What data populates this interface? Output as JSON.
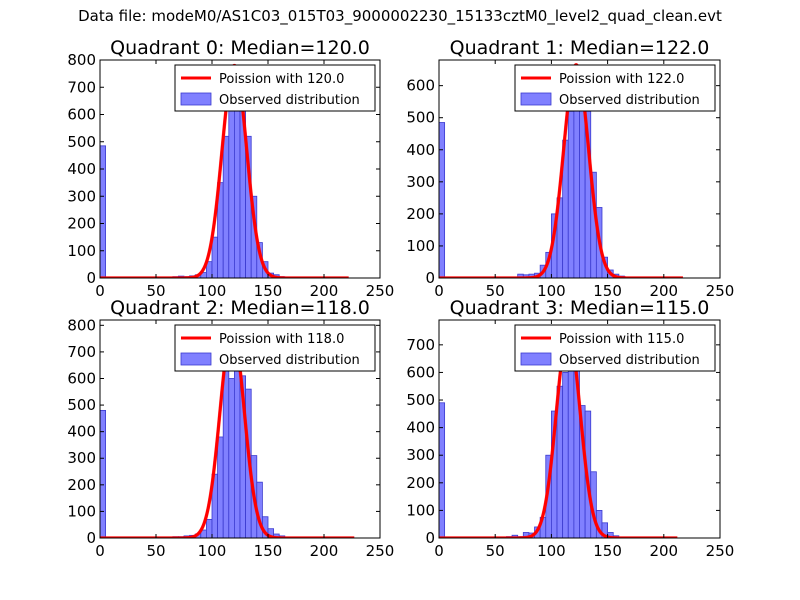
{
  "figure": {
    "suptitle": "Data file: modeM0/AS1C03_015T03_9000002230_15133cztM0_level2_quad_clean.evt"
  },
  "chart_data": [
    {
      "type": "histogram+line",
      "title": "Quadrant 0: Median=120.0",
      "median": 120.0,
      "xlim": [
        0,
        250
      ],
      "ylim": [
        0,
        800
      ],
      "xticks": [
        0,
        50,
        100,
        150,
        200,
        250
      ],
      "yticks": [
        0,
        100,
        200,
        300,
        400,
        500,
        600,
        700,
        800
      ],
      "legend_location": "upper right",
      "legend": [
        {
          "label": "Poission with 120.0",
          "kind": "line",
          "color": "#ff0000"
        },
        {
          "label": "Observed distribution",
          "kind": "patch",
          "color": "#8080ff"
        }
      ],
      "bin_width": 5,
      "bar_color": "#8080ff",
      "bins": [
        [
          0,
          485
        ],
        [
          60,
          3
        ],
        [
          65,
          5
        ],
        [
          70,
          7
        ],
        [
          75,
          5
        ],
        [
          80,
          8
        ],
        [
          85,
          12
        ],
        [
          90,
          20
        ],
        [
          95,
          60
        ],
        [
          100,
          150
        ],
        [
          105,
          350
        ],
        [
          110,
          520
        ],
        [
          115,
          630
        ],
        [
          120,
          750
        ],
        [
          125,
          640
        ],
        [
          130,
          520
        ],
        [
          135,
          300
        ],
        [
          140,
          130
        ],
        [
          145,
          60
        ],
        [
          150,
          18
        ],
        [
          155,
          12
        ],
        [
          160,
          5
        ],
        [
          165,
          3
        ],
        [
          175,
          2
        ]
      ],
      "poisson_curve": {
        "label": "Poission with 120.0",
        "mean": 120.0,
        "peak": 780,
        "x_range": [
          0,
          222
        ],
        "color": "#ff0000"
      }
    },
    {
      "type": "histogram+line",
      "title": "Quadrant 1: Median=122.0",
      "median": 122.0,
      "xlim": [
        0,
        250
      ],
      "ylim": [
        0,
        680
      ],
      "xticks": [
        0,
        50,
        100,
        150,
        200,
        250
      ],
      "yticks": [
        0,
        100,
        200,
        300,
        400,
        500,
        600
      ],
      "legend_location": "upper right",
      "legend": [
        {
          "label": "Poission with 122.0",
          "kind": "line",
          "color": "#ff0000"
        },
        {
          "label": "Observed distribution",
          "kind": "patch",
          "color": "#8080ff"
        }
      ],
      "bin_width": 5,
      "bar_color": "#8080ff",
      "bins": [
        [
          0,
          485
        ],
        [
          70,
          12
        ],
        [
          75,
          10
        ],
        [
          80,
          12
        ],
        [
          85,
          15
        ],
        [
          90,
          40
        ],
        [
          95,
          80
        ],
        [
          100,
          200
        ],
        [
          105,
          250
        ],
        [
          110,
          430
        ],
        [
          115,
          520
        ],
        [
          120,
          600
        ],
        [
          125,
          570
        ],
        [
          130,
          520
        ],
        [
          135,
          330
        ],
        [
          140,
          220
        ],
        [
          145,
          65
        ],
        [
          150,
          25
        ],
        [
          155,
          12
        ],
        [
          160,
          6
        ],
        [
          165,
          3
        ]
      ],
      "poisson_curve": {
        "label": "Poission with 122.0",
        "mean": 122.0,
        "peak": 665,
        "x_range": [
          0,
          217
        ],
        "color": "#ff0000"
      }
    },
    {
      "type": "histogram+line",
      "title": "Quadrant 2: Median=118.0",
      "median": 118.0,
      "xlim": [
        0,
        250
      ],
      "ylim": [
        0,
        820
      ],
      "xticks": [
        0,
        50,
        100,
        150,
        200,
        250
      ],
      "yticks": [
        0,
        100,
        200,
        300,
        400,
        500,
        600,
        700,
        800
      ],
      "legend_location": "upper right",
      "legend": [
        {
          "label": "Poission with 118.0",
          "kind": "line",
          "color": "#ff0000"
        },
        {
          "label": "Observed distribution",
          "kind": "patch",
          "color": "#8080ff"
        }
      ],
      "bin_width": 5,
      "bar_color": "#8080ff",
      "bins": [
        [
          0,
          480
        ],
        [
          65,
          5
        ],
        [
          70,
          5
        ],
        [
          75,
          8
        ],
        [
          80,
          10
        ],
        [
          85,
          15
        ],
        [
          90,
          30
        ],
        [
          95,
          70
        ],
        [
          100,
          240
        ],
        [
          105,
          380
        ],
        [
          110,
          670
        ],
        [
          115,
          600
        ],
        [
          120,
          790
        ],
        [
          125,
          610
        ],
        [
          130,
          560
        ],
        [
          135,
          310
        ],
        [
          140,
          210
        ],
        [
          145,
          80
        ],
        [
          150,
          35
        ],
        [
          155,
          15
        ],
        [
          160,
          8
        ],
        [
          165,
          3
        ],
        [
          180,
          2
        ]
      ],
      "poisson_curve": {
        "label": "Poission with 118.0",
        "mean": 118.0,
        "peak": 785,
        "x_range": [
          0,
          227
        ],
        "color": "#ff0000"
      }
    },
    {
      "type": "histogram+line",
      "title": "Quadrant 3: Median=115.0",
      "median": 115.0,
      "xlim": [
        0,
        250
      ],
      "ylim": [
        0,
        790
      ],
      "xticks": [
        0,
        50,
        100,
        150,
        200,
        250
      ],
      "yticks": [
        0,
        100,
        200,
        300,
        400,
        500,
        600,
        700
      ],
      "legend_location": "upper right",
      "legend": [
        {
          "label": "Poission with 115.0",
          "kind": "line",
          "color": "#ff0000"
        },
        {
          "label": "Observed distribution",
          "kind": "patch",
          "color": "#8080ff"
        }
      ],
      "bin_width": 5,
      "bar_color": "#8080ff",
      "bins": [
        [
          0,
          490
        ],
        [
          60,
          5
        ],
        [
          65,
          10
        ],
        [
          70,
          5
        ],
        [
          75,
          20
        ],
        [
          80,
          18
        ],
        [
          85,
          40
        ],
        [
          90,
          75
        ],
        [
          95,
          300
        ],
        [
          100,
          460
        ],
        [
          105,
          550
        ],
        [
          110,
          600
        ],
        [
          115,
          720
        ],
        [
          120,
          690
        ],
        [
          125,
          480
        ],
        [
          130,
          460
        ],
        [
          135,
          240
        ],
        [
          140,
          100
        ],
        [
          145,
          55
        ],
        [
          150,
          20
        ],
        [
          155,
          8
        ],
        [
          160,
          3
        ]
      ],
      "poisson_curve": {
        "label": "Poission with 115.0",
        "mean": 115.0,
        "peak": 745,
        "x_range": [
          0,
          212
        ],
        "color": "#ff0000"
      }
    }
  ]
}
